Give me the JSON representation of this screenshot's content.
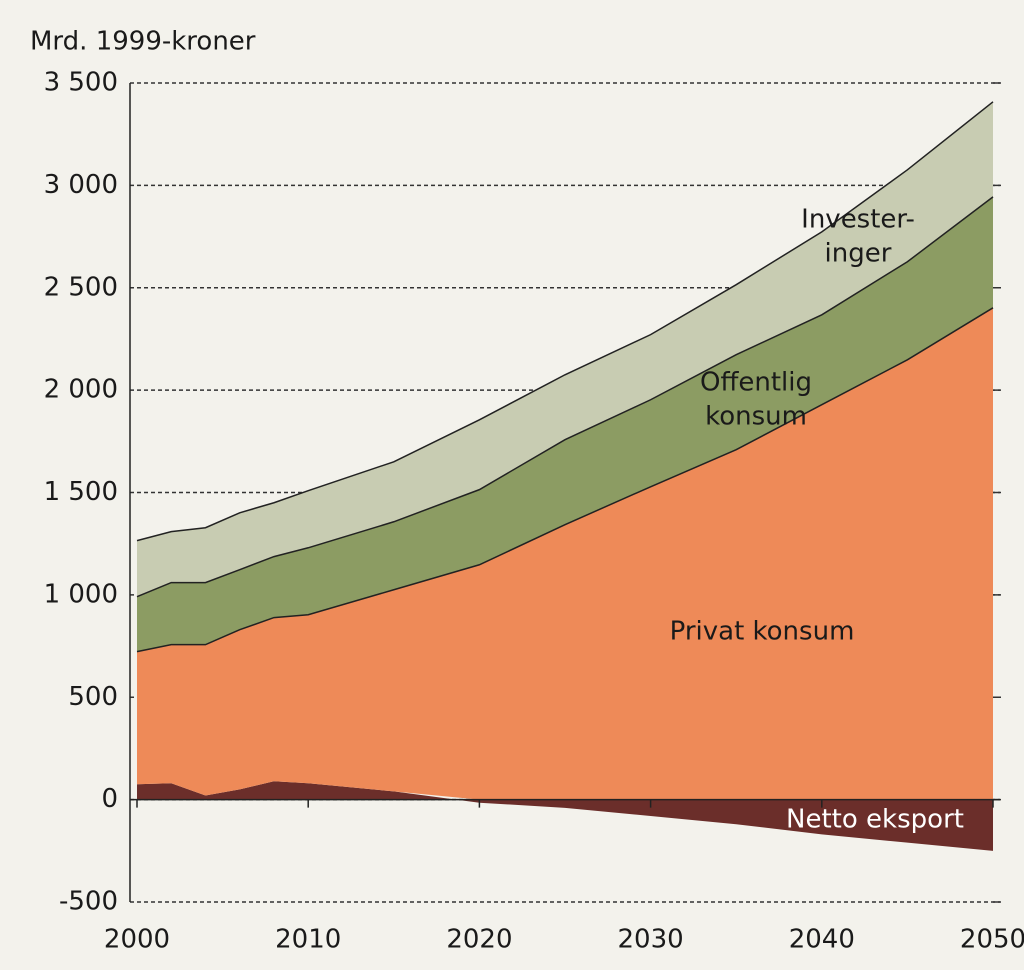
{
  "chart_data": {
    "type": "stacked_area",
    "ylabel": "Mrd. 1999-kroner",
    "x": [
      2000,
      2002,
      2004,
      2006,
      2008,
      2010,
      2015,
      2020,
      2025,
      2030,
      2035,
      2040,
      2045,
      2050
    ],
    "xlim": [
      2000,
      2050
    ],
    "xticks": [
      2000,
      2010,
      2020,
      2030,
      2040,
      2050
    ],
    "ylim": [
      -500,
      3500
    ],
    "yticks": [
      {
        "value": -500,
        "label": "-500"
      },
      0,
      500,
      {
        "value": 1000,
        "label": "1 000"
      },
      {
        "value": 1500,
        "label": "1 500"
      },
      {
        "value": 2000,
        "label": "2 000"
      },
      {
        "value": 2500,
        "label": "2 500"
      },
      {
        "value": 3000,
        "label": "3 000"
      },
      {
        "value": 3500,
        "label": "3 500"
      }
    ],
    "grid": true,
    "series": [
      {
        "label_lines": [
          "Netto eksport"
        ],
        "color": "#6b2e2a",
        "values": [
          75,
          80,
          20,
          50,
          90,
          80,
          40,
          -15,
          -40,
          -80,
          -120,
          -170,
          -210,
          -250
        ]
      },
      {
        "label_lines": [
          "Privat konsum"
        ],
        "color": "#ee8a58",
        "values": [
          648,
          677,
          737,
          780,
          799,
          823,
          985,
          1147,
          1343,
          1528,
          1709,
          1929,
          2148,
          2402
        ]
      },
      {
        "label_lines": [
          "Offentlig",
          "konsum"
        ],
        "color": "#8c9c63",
        "values": [
          268,
          303,
          303,
          293,
          298,
          327,
          332,
          367,
          415,
          425,
          464,
          439,
          479,
          542
        ]
      },
      {
        "label_lines": [
          "Invester-",
          "inger"
        ],
        "color": "#c8ccb2",
        "values": [
          274,
          249,
          268,
          278,
          263,
          279,
          293,
          341,
          317,
          318,
          342,
          405,
          449,
          464
        ]
      }
    ]
  }
}
